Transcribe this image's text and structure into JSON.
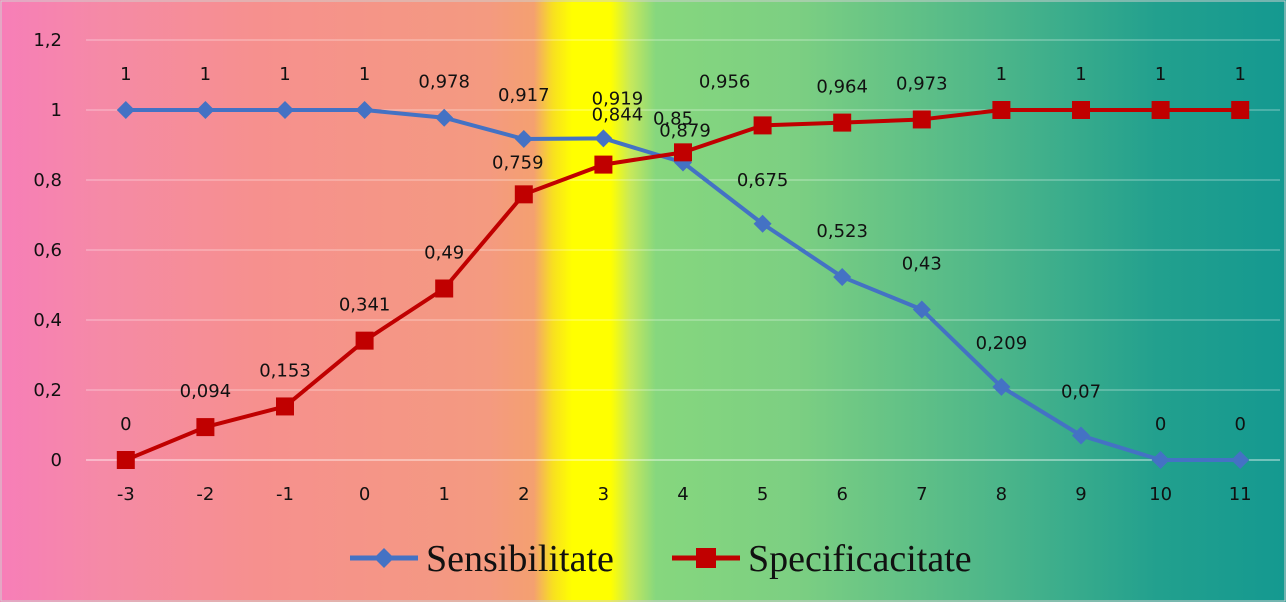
{
  "chart_data": {
    "type": "line",
    "title": "",
    "xlabel": "",
    "ylabel": "",
    "categories": [
      "-3",
      "-2",
      "-1",
      "0",
      "1",
      "2",
      "3",
      "4",
      "5",
      "6",
      "7",
      "8",
      "9",
      "10",
      "11"
    ],
    "ylim": [
      0,
      1.2
    ],
    "yticks": [
      "0",
      "0,2",
      "0,4",
      "0,6",
      "0,8",
      "1",
      "1,2"
    ],
    "grid": true,
    "legend_position": "bottom",
    "background_bands": [
      "pink-to-salmon gradient",
      "yellow highlight at 3",
      "green-to-teal gradient"
    ],
    "series": [
      {
        "name": "Sensibilitate",
        "color": "#4472C4",
        "marker": "diamond",
        "values": [
          1,
          1,
          1,
          1,
          0.978,
          0.917,
          0.919,
          0.85,
          0.675,
          0.523,
          0.43,
          0.209,
          0.07,
          0,
          0
        ],
        "labels": [
          "1",
          "1",
          "1",
          "1",
          "0,978",
          "0,917",
          "0,919",
          "0,85",
          "0,675",
          "0,523",
          "0,43",
          "0,209",
          "0,07",
          "0",
          "0"
        ]
      },
      {
        "name": "Specificacitate",
        "color": "#C00000",
        "marker": "square",
        "values": [
          0,
          0.094,
          0.153,
          0.341,
          0.49,
          0.759,
          0.844,
          0.879,
          0.956,
          0.964,
          0.973,
          1,
          1,
          1,
          1
        ],
        "labels": [
          "0",
          "0,094",
          "0,153",
          "0,341",
          "0,49",
          "0,759",
          "0,844",
          "0,879",
          "0,956",
          "0,964",
          "0,973",
          "1",
          "1",
          "1",
          "1"
        ]
      }
    ]
  }
}
